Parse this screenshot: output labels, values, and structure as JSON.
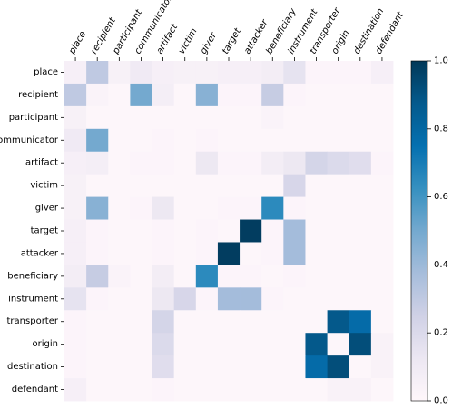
{
  "chart_data": {
    "type": "heatmap",
    "title": "",
    "xlabel": "",
    "ylabel": "",
    "x_labels": [
      "place",
      "recipient",
      "participant",
      "communicator",
      "artifact",
      "victim",
      "giver",
      "target",
      "attacker",
      "beneficiary",
      "instrument",
      "transporter",
      "origin",
      "destination",
      "defendant"
    ],
    "y_labels": [
      "place",
      "recipient",
      "participant",
      "communicator",
      "artifact",
      "victim",
      "giver",
      "target",
      "attacker",
      "beneficiary",
      "instrument",
      "transporter",
      "origin",
      "destination",
      "defendant"
    ],
    "values": [
      [
        0.06,
        0.3,
        0.05,
        0.1,
        0.06,
        0.05,
        0.05,
        0.06,
        0.06,
        0.08,
        0.15,
        0.02,
        0.02,
        0.02,
        0.06
      ],
      [
        0.3,
        0.03,
        0.01,
        0.5,
        0.07,
        0.01,
        0.45,
        0.02,
        0.02,
        0.28,
        0.02,
        0.01,
        0.01,
        0.01,
        0.01
      ],
      [
        0.05,
        0.01,
        0.01,
        0.01,
        0.01,
        0.01,
        0.01,
        0.01,
        0.01,
        0.03,
        0.01,
        0.01,
        0.01,
        0.01,
        0.01
      ],
      [
        0.1,
        0.5,
        0.01,
        0.01,
        0.02,
        0.01,
        0.02,
        0.01,
        0.01,
        0.01,
        0.01,
        0.01,
        0.01,
        0.01,
        0.01
      ],
      [
        0.06,
        0.07,
        0.01,
        0.02,
        0.02,
        0.01,
        0.12,
        0.02,
        0.02,
        0.08,
        0.12,
        0.23,
        0.2,
        0.18,
        0.02
      ],
      [
        0.05,
        0.01,
        0.01,
        0.01,
        0.01,
        0.01,
        0.01,
        0.01,
        0.01,
        0.01,
        0.22,
        0.01,
        0.01,
        0.01,
        0.01
      ],
      [
        0.05,
        0.45,
        0.01,
        0.02,
        0.12,
        0.01,
        0.01,
        0.02,
        0.02,
        0.65,
        0.02,
        0.01,
        0.01,
        0.01,
        0.01
      ],
      [
        0.06,
        0.02,
        0.01,
        0.01,
        0.02,
        0.01,
        0.02,
        0.01,
        0.98,
        0.02,
        0.38,
        0.01,
        0.01,
        0.01,
        0.01
      ],
      [
        0.06,
        0.02,
        0.01,
        0.01,
        0.02,
        0.01,
        0.02,
        0.98,
        0.01,
        0.02,
        0.38,
        0.01,
        0.01,
        0.01,
        0.01
      ],
      [
        0.08,
        0.28,
        0.03,
        0.01,
        0.08,
        0.01,
        0.65,
        0.02,
        0.02,
        0.01,
        0.02,
        0.01,
        0.01,
        0.01,
        0.01
      ],
      [
        0.15,
        0.02,
        0.01,
        0.01,
        0.12,
        0.22,
        0.02,
        0.38,
        0.38,
        0.02,
        0.01,
        0.01,
        0.01,
        0.01,
        0.01
      ],
      [
        0.02,
        0.01,
        0.01,
        0.01,
        0.23,
        0.01,
        0.01,
        0.01,
        0.01,
        0.01,
        0.01,
        0.01,
        0.88,
        0.78,
        0.01
      ],
      [
        0.02,
        0.01,
        0.01,
        0.01,
        0.2,
        0.01,
        0.01,
        0.01,
        0.01,
        0.01,
        0.01,
        0.88,
        0.01,
        0.92,
        0.04
      ],
      [
        0.02,
        0.01,
        0.01,
        0.01,
        0.18,
        0.01,
        0.01,
        0.01,
        0.01,
        0.01,
        0.01,
        0.78,
        0.92,
        0.01,
        0.04
      ],
      [
        0.06,
        0.01,
        0.01,
        0.01,
        0.02,
        0.01,
        0.01,
        0.01,
        0.01,
        0.01,
        0.01,
        0.01,
        0.04,
        0.04,
        0.01
      ]
    ],
    "colorbar": {
      "min": 0.0,
      "max": 1.0,
      "ticks": [
        "0.0",
        "0.2",
        "0.4",
        "0.6",
        "0.8",
        "1.0"
      ],
      "colormap": "PuBu",
      "colors": [
        "#fff7fb",
        "#ece7f2",
        "#d0d1e6",
        "#a6bddb",
        "#74a9cf",
        "#3690c0",
        "#0570b0",
        "#045a8d",
        "#023858"
      ]
    }
  }
}
